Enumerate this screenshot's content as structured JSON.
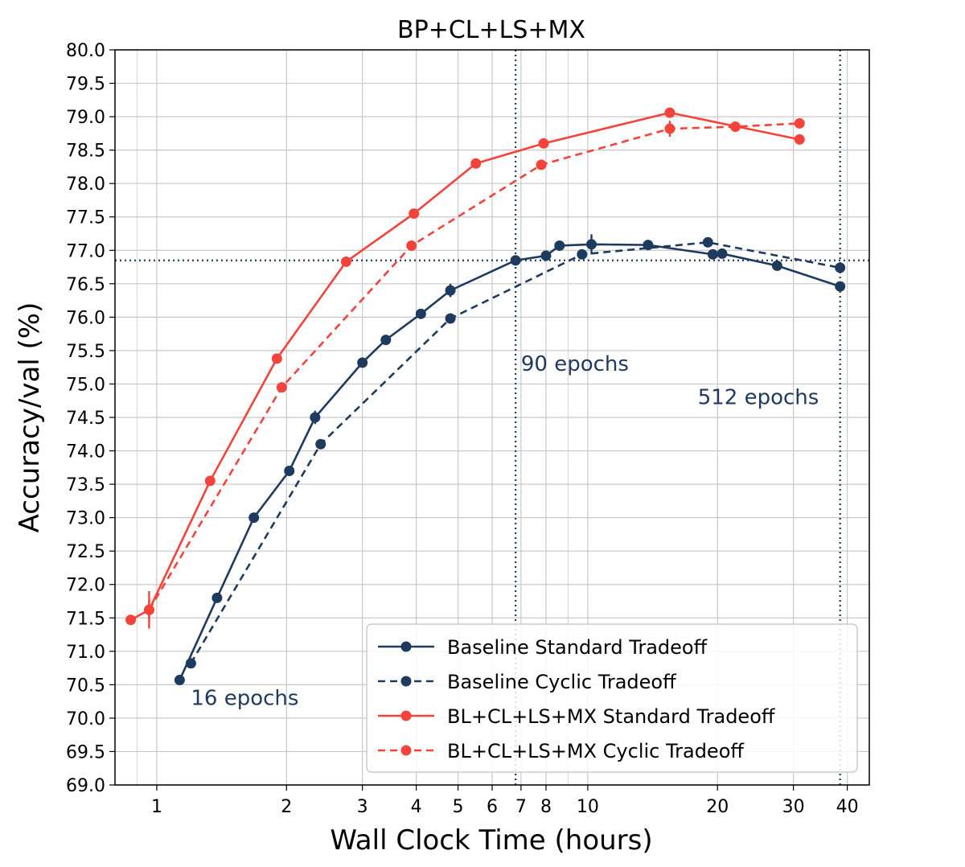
{
  "chart_data": {
    "type": "line",
    "title": "BP+CL+LS+MX",
    "xlabel": "Wall Clock Time (hours)",
    "ylabel": "Accuracy/val (%)",
    "xscale": "log",
    "xlim": [
      0.8,
      45
    ],
    "ylim": [
      69.0,
      80.0
    ],
    "x_ticks": [
      1,
      2,
      3,
      4,
      5,
      6,
      7,
      8,
      10,
      20,
      30,
      40
    ],
    "x_tick_labels": [
      "1",
      "2",
      "3",
      "4",
      "5",
      "6",
      "7",
      "8",
      "10",
      "20",
      "30",
      "40"
    ],
    "y_ticks": [
      69.0,
      69.5,
      70.0,
      70.5,
      71.0,
      71.5,
      72.0,
      72.5,
      73.0,
      73.5,
      74.0,
      74.5,
      75.0,
      75.5,
      76.0,
      76.5,
      77.0,
      77.5,
      78.0,
      78.5,
      79.0,
      79.5,
      80.0
    ],
    "y_tick_labels": [
      "69.0",
      "69.5",
      "70.0",
      "70.5",
      "71.0",
      "71.5",
      "72.0",
      "72.5",
      "73.0",
      "73.5",
      "74.0",
      "74.5",
      "75.0",
      "75.5",
      "76.0",
      "76.5",
      "77.0",
      "77.5",
      "78.0",
      "78.5",
      "79.0",
      "79.5",
      "80.0"
    ],
    "grid": true,
    "legend_position": "bottom-right",
    "reference_lines": {
      "horizontal_y": 76.85,
      "vertical_x": [
        6.8,
        38.5
      ]
    },
    "annotations": [
      {
        "text": "90 epochs",
        "x": 7.0,
        "y": 75.2
      },
      {
        "text": "512 epochs",
        "x": 18.0,
        "y": 74.7
      },
      {
        "text": "16 epochs",
        "x": 1.2,
        "y": 70.2
      }
    ],
    "series": [
      {
        "name": "Baseline Standard Tradeoff",
        "color": "#1f3a5f",
        "dash": "solid",
        "x": [
          1.13,
          1.38,
          1.68,
          2.03,
          2.33,
          3.0,
          3.4,
          4.1,
          4.8,
          6.8,
          8.0,
          8.6,
          10.2,
          13.8,
          19.5,
          20.5,
          27.5,
          38.5
        ],
        "y": [
          70.57,
          71.8,
          73.0,
          73.7,
          74.5,
          75.32,
          75.66,
          76.05,
          76.4,
          76.85,
          76.92,
          77.07,
          77.09,
          77.08,
          76.94,
          76.95,
          76.77,
          76.46
        ],
        "error": [
          0,
          0,
          0,
          0,
          0.1,
          0,
          0,
          0,
          0.1,
          0,
          0,
          0,
          0.15,
          0,
          0,
          0,
          0,
          0
        ]
      },
      {
        "name": "Baseline Cyclic Tradeoff",
        "color": "#1f3a5f",
        "dash": "dashed",
        "x": [
          1.2,
          2.4,
          4.8,
          9.7,
          19.0,
          38.5
        ],
        "y": [
          70.82,
          74.1,
          75.98,
          76.94,
          77.12,
          76.74
        ],
        "error": [
          0,
          0,
          0,
          0.06,
          0,
          0
        ]
      },
      {
        "name": "BL+CL+LS+MX Standard Tradeoff",
        "color": "#f4433a",
        "dash": "solid",
        "x": [
          0.87,
          0.96,
          1.33,
          1.9,
          2.75,
          3.95,
          5.5,
          7.9,
          15.5,
          31.0
        ],
        "y": [
          71.47,
          71.62,
          73.55,
          75.38,
          76.83,
          77.55,
          78.3,
          78.6,
          79.06,
          78.66
        ],
        "error": [
          0,
          0.15,
          0,
          0,
          0,
          0,
          0,
          0,
          0,
          0
        ]
      },
      {
        "name": "BL+CL+LS+MX Cyclic Tradeoff",
        "color": "#f4433a",
        "dash": "dashed",
        "x": [
          0.96,
          1.95,
          3.9,
          7.8,
          15.5,
          22.0,
          31.0
        ],
        "y": [
          71.62,
          74.95,
          77.07,
          78.28,
          78.82,
          78.85,
          78.9
        ],
        "error": [
          0.28,
          0,
          0,
          0,
          0.12,
          0,
          0
        ]
      }
    ]
  }
}
